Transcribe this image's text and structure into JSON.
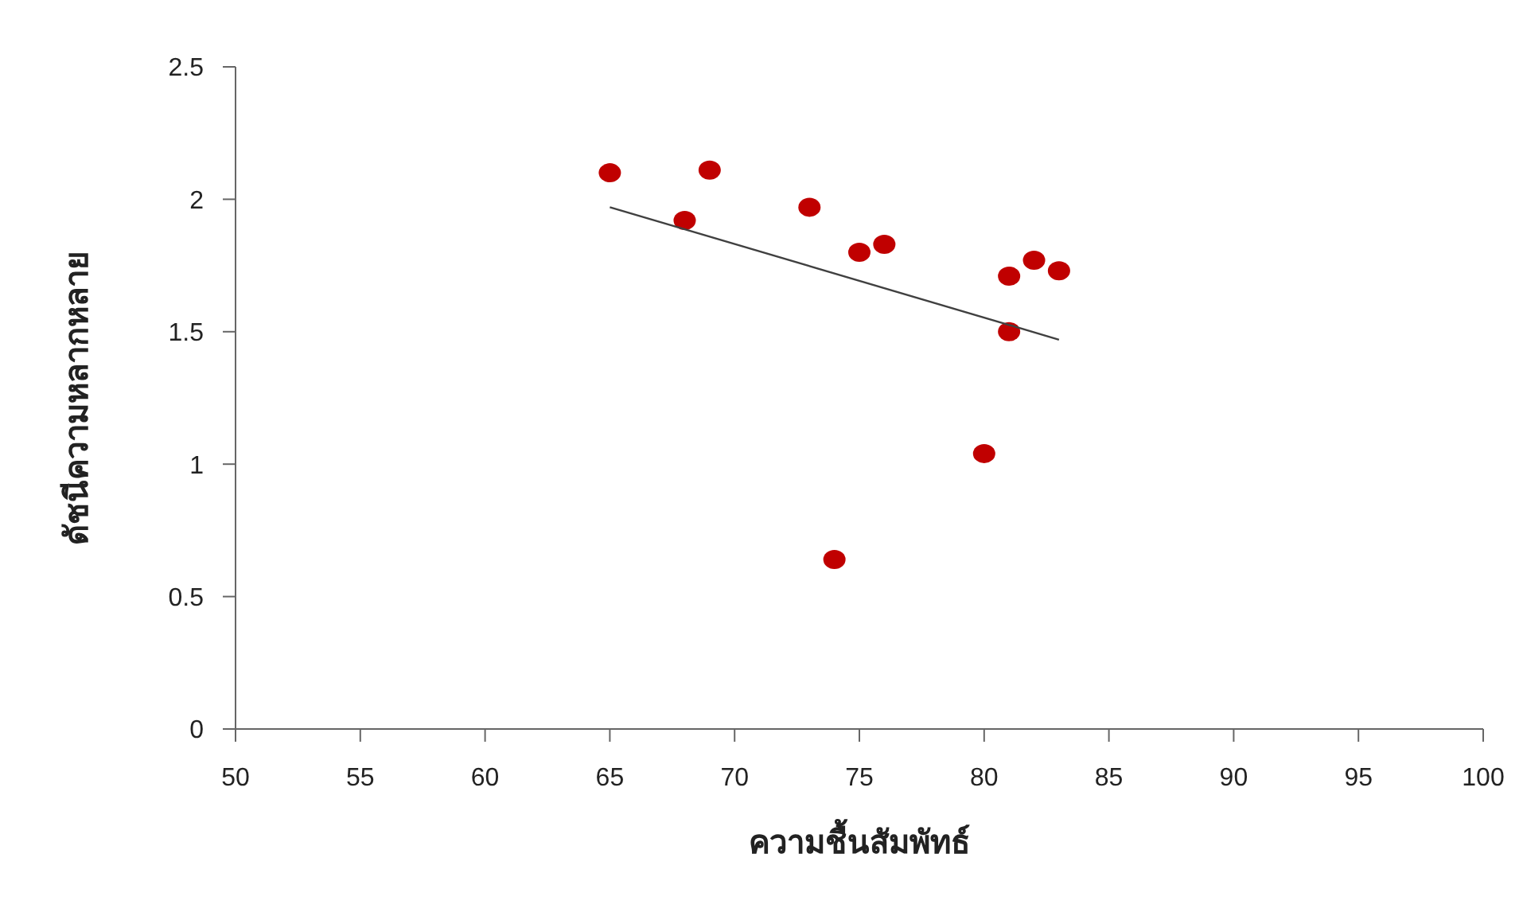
{
  "chart_data": {
    "type": "scatter",
    "xlabel": "ความชื้นสัมพัทธ์",
    "ylabel": "ดัชนีความหลากหลาย",
    "xlim": [
      50,
      100
    ],
    "xticks": [
      50,
      55,
      60,
      65,
      70,
      75,
      80,
      85,
      90,
      95,
      100
    ],
    "ylim": [
      0,
      2.5
    ],
    "yticks": [
      0,
      0.5,
      1,
      1.5,
      2,
      2.5
    ],
    "grid": false,
    "legend": false,
    "marker": "circle",
    "series": [
      {
        "color": "#c00000",
        "x": [
          65,
          68,
          69,
          73,
          74,
          75,
          76,
          80,
          81,
          81,
          82,
          83
        ],
        "values": [
          2.1,
          1.92,
          2.11,
          1.97,
          0.64,
          1.8,
          1.83,
          1.04,
          1.71,
          1.5,
          1.77,
          1.73
        ]
      },
      {
        "type": "line",
        "color": "#404040",
        "x": [
          65,
          83
        ],
        "values": [
          1.97,
          1.47
        ],
        "marker": "none"
      }
    ]
  }
}
